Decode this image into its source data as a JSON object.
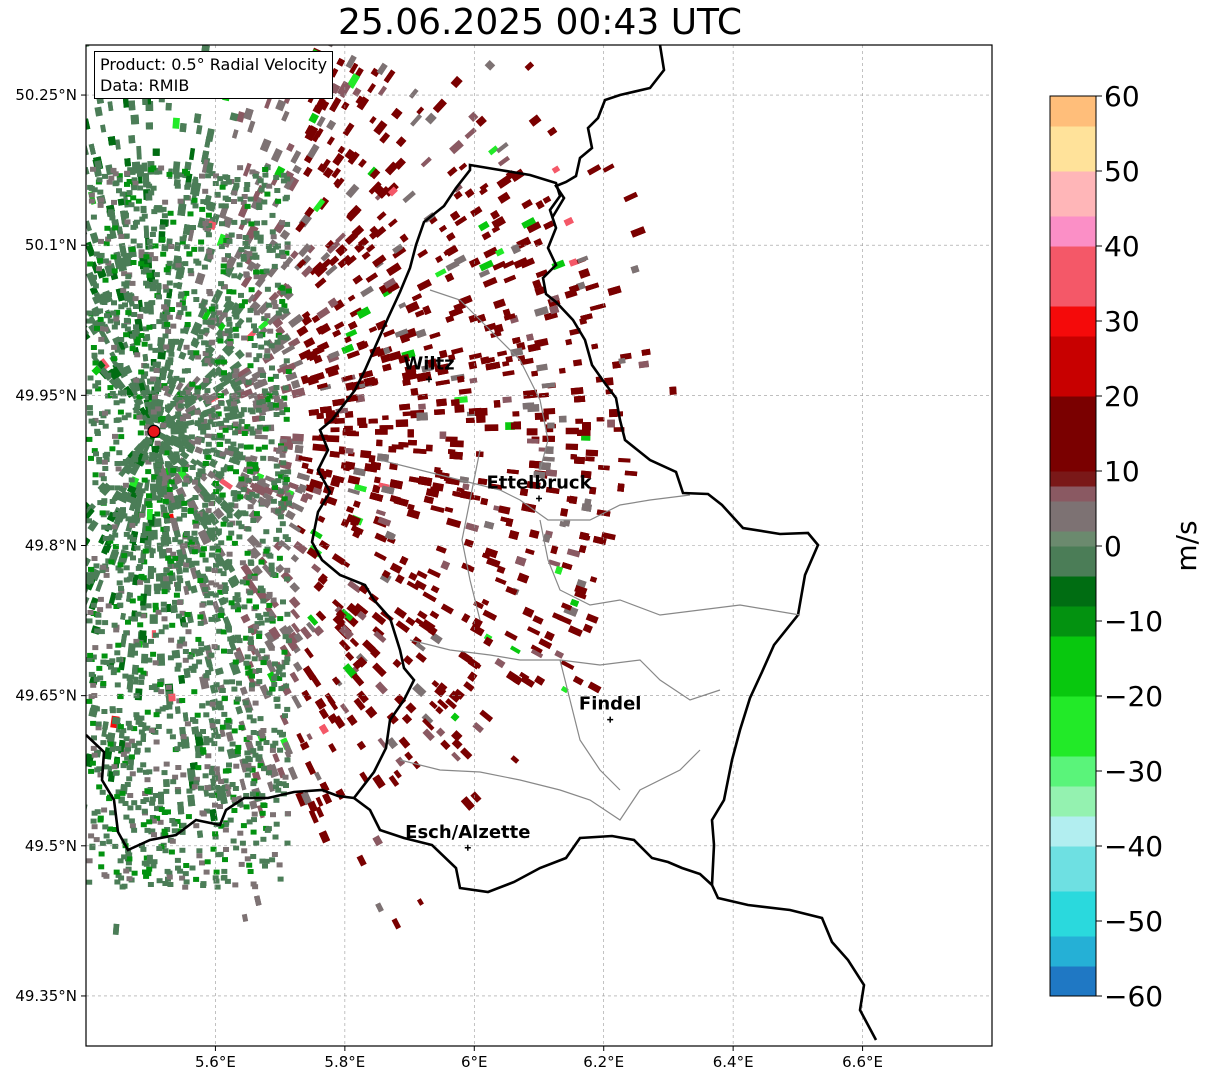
{
  "title": "25.06.2025 00:43 UTC",
  "info": {
    "product": "Product: 0.5° Radial Velocity",
    "data": "Data: RMIB"
  },
  "axes": {
    "lon_ticks": [
      {
        "value": 5.6,
        "label": "5.6°E"
      },
      {
        "value": 5.8,
        "label": "5.8°E"
      },
      {
        "value": 6.0,
        "label": "6°E"
      },
      {
        "value": 6.2,
        "label": "6.2°E"
      },
      {
        "value": 6.4,
        "label": "6.4°E"
      },
      {
        "value": 6.6,
        "label": "6.6°E"
      }
    ],
    "lat_ticks": [
      {
        "value": 50.25,
        "label": "50.25°N"
      },
      {
        "value": 50.1,
        "label": "50.1°N"
      },
      {
        "value": 49.95,
        "label": "49.95°N"
      },
      {
        "value": 49.8,
        "label": "49.8°N"
      },
      {
        "value": 49.65,
        "label": "49.65°N"
      },
      {
        "value": 49.5,
        "label": "49.5°N"
      },
      {
        "value": 49.35,
        "label": "49.35°N"
      }
    ],
    "lon_range": [
      5.4,
      6.8
    ],
    "lat_range": [
      49.3,
      50.3
    ],
    "grid": true
  },
  "places": [
    {
      "name": "Wiltz",
      "lon": 5.93,
      "lat": 49.966
    },
    {
      "name": "Ettelbruck",
      "lon": 6.1,
      "lat": 49.847
    },
    {
      "name": "Findel",
      "lon": 6.21,
      "lat": 49.626
    },
    {
      "name": "Esch/Alzette",
      "lon": 5.99,
      "lat": 49.498
    }
  ],
  "radar": {
    "lon": 5.505,
    "lat": 49.914,
    "color": "#e8161b"
  },
  "colorbar": {
    "label": "m/s",
    "min": -60,
    "max": 60,
    "ticks": [
      {
        "value": 60,
        "label": "60"
      },
      {
        "value": 50,
        "label": "50"
      },
      {
        "value": 40,
        "label": "40"
      },
      {
        "value": 30,
        "label": "30"
      },
      {
        "value": 20,
        "label": "20"
      },
      {
        "value": 10,
        "label": "10"
      },
      {
        "value": 0,
        "label": "0"
      },
      {
        "value": -10,
        "label": "−10"
      },
      {
        "value": -20,
        "label": "−20"
      },
      {
        "value": -30,
        "label": "−30"
      },
      {
        "value": -40,
        "label": "−40"
      },
      {
        "value": -50,
        "label": "−50"
      },
      {
        "value": -60,
        "label": "−60"
      }
    ],
    "stops": [
      {
        "value": -60,
        "color": "#1f78c4"
      },
      {
        "value": -56,
        "color": "#25b0d6"
      },
      {
        "value": -52,
        "color": "#2ad9dd"
      },
      {
        "value": -46,
        "color": "#6ee0e2"
      },
      {
        "value": -40,
        "color": "#b2eef0"
      },
      {
        "value": -36,
        "color": "#94f2b0"
      },
      {
        "value": -32,
        "color": "#5af47a"
      },
      {
        "value": -28,
        "color": "#22ea28"
      },
      {
        "value": -20,
        "color": "#08c80e"
      },
      {
        "value": -12,
        "color": "#039210"
      },
      {
        "value": -8,
        "color": "#006d12"
      },
      {
        "value": -5,
        "color": "#4b7d57"
      },
      {
        "value": -1,
        "color": "#6b8a6e"
      },
      {
        "value": 1,
        "color": "#7d7273"
      },
      {
        "value": 6,
        "color": "#8a5962"
      },
      {
        "value": 8,
        "color": "#7a1818"
      },
      {
        "value": 10,
        "color": "#7a0000"
      },
      {
        "value": 20,
        "color": "#c80000"
      },
      {
        "value": 28,
        "color": "#f50a0a"
      },
      {
        "value": 32,
        "color": "#f45868"
      },
      {
        "value": 40,
        "color": "#fb8fc6"
      },
      {
        "value": 44,
        "color": "#ffb6b8"
      },
      {
        "value": 50,
        "color": "#ffe29a"
      },
      {
        "value": 56,
        "color": "#ffbe7a"
      },
      {
        "value": 60,
        "color": "#ff9a52"
      }
    ]
  }
}
